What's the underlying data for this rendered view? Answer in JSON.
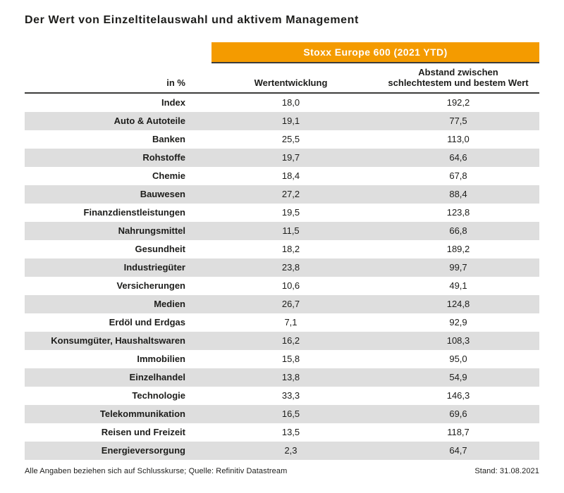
{
  "title": "Der Wert von Einzeltitelauswahl und aktivem Management",
  "banner": {
    "label": "Stoxx Europe 600 (2021 YTD)"
  },
  "table": {
    "unit_header": "in %",
    "col2_header": "Wertentwicklung",
    "col3_header_line1": "Abstand zwischen",
    "col3_header_line2": "schlechtestem und bestem Wert",
    "rows": [
      {
        "label": "Index",
        "wertentwicklung": "18,0",
        "abstand": "192,2"
      },
      {
        "label": "Auto & Autoteile",
        "wertentwicklung": "19,1",
        "abstand": "77,5"
      },
      {
        "label": "Banken",
        "wertentwicklung": "25,5",
        "abstand": "113,0"
      },
      {
        "label": "Rohstoffe",
        "wertentwicklung": "19,7",
        "abstand": "64,6"
      },
      {
        "label": "Chemie",
        "wertentwicklung": "18,4",
        "abstand": "67,8"
      },
      {
        "label": "Bauwesen",
        "wertentwicklung": "27,2",
        "abstand": "88,4"
      },
      {
        "label": "Finanzdienstleistungen",
        "wertentwicklung": "19,5",
        "abstand": "123,8"
      },
      {
        "label": "Nahrungsmittel",
        "wertentwicklung": "11,5",
        "abstand": "66,8"
      },
      {
        "label": "Gesundheit",
        "wertentwicklung": "18,2",
        "abstand": "189,2"
      },
      {
        "label": "Industriegüter",
        "wertentwicklung": "23,8",
        "abstand": "99,7"
      },
      {
        "label": "Versicherungen",
        "wertentwicklung": "10,6",
        "abstand": "49,1"
      },
      {
        "label": "Medien",
        "wertentwicklung": "26,7",
        "abstand": "124,8"
      },
      {
        "label": "Erdöl und Erdgas",
        "wertentwicklung": "7,1",
        "abstand": "92,9"
      },
      {
        "label": "Konsumgüter, Haushaltswaren",
        "wertentwicklung": "16,2",
        "abstand": "108,3"
      },
      {
        "label": "Immobilien",
        "wertentwicklung": "15,8",
        "abstand": "95,0"
      },
      {
        "label": "Einzelhandel",
        "wertentwicklung": "13,8",
        "abstand": "54,9"
      },
      {
        "label": "Technologie",
        "wertentwicklung": "33,3",
        "abstand": "146,3"
      },
      {
        "label": "Telekommunikation",
        "wertentwicklung": "16,5",
        "abstand": "69,6"
      },
      {
        "label": "Reisen und Freizeit",
        "wertentwicklung": "13,5",
        "abstand": "118,7"
      },
      {
        "label": "Energieversorgung",
        "wertentwicklung": "2,3",
        "abstand": "64,7"
      }
    ]
  },
  "footer": {
    "left": "Alle Angaben beziehen sich auf Schlusskurse; Quelle: Refinitiv Datastream",
    "right": "Stand: 31.08.2021"
  },
  "colors": {
    "accent_orange": "#f49b00",
    "stripe_gray": "#dedede",
    "rule_dark": "#3c3c3b",
    "text_dark": "#1d1d1b"
  },
  "chart_data": {
    "type": "table",
    "title": "Der Wert von Einzeltitelauswahl und aktivem Management",
    "group_header": "Stoxx Europe 600 (2021 YTD)",
    "unit": "%",
    "categories": [
      "Index",
      "Auto & Autoteile",
      "Banken",
      "Rohstoffe",
      "Chemie",
      "Bauwesen",
      "Finanzdienstleistungen",
      "Nahrungsmittel",
      "Gesundheit",
      "Industriegüter",
      "Versicherungen",
      "Medien",
      "Erdöl und Erdgas",
      "Konsumgüter, Haushaltswaren",
      "Immobilien",
      "Einzelhandel",
      "Technologie",
      "Telekommunikation",
      "Reisen und Freizeit",
      "Energieversorgung"
    ],
    "series": [
      {
        "name": "Wertentwicklung",
        "values": [
          18.0,
          19.1,
          25.5,
          19.7,
          18.4,
          27.2,
          19.5,
          11.5,
          18.2,
          23.8,
          10.6,
          26.7,
          7.1,
          16.2,
          15.8,
          13.8,
          33.3,
          16.5,
          13.5,
          2.3
        ]
      },
      {
        "name": "Abstand zwischen schlechtestem und bestem Wert",
        "values": [
          192.2,
          77.5,
          113.0,
          64.6,
          67.8,
          88.4,
          123.8,
          66.8,
          189.2,
          99.7,
          49.1,
          124.8,
          92.9,
          108.3,
          95.0,
          54.9,
          146.3,
          69.6,
          118.7,
          64.7
        ]
      }
    ],
    "source_note": "Alle Angaben beziehen sich auf Schlusskurse; Quelle: Refinitiv Datastream",
    "as_of": "Stand: 31.08.2021"
  }
}
